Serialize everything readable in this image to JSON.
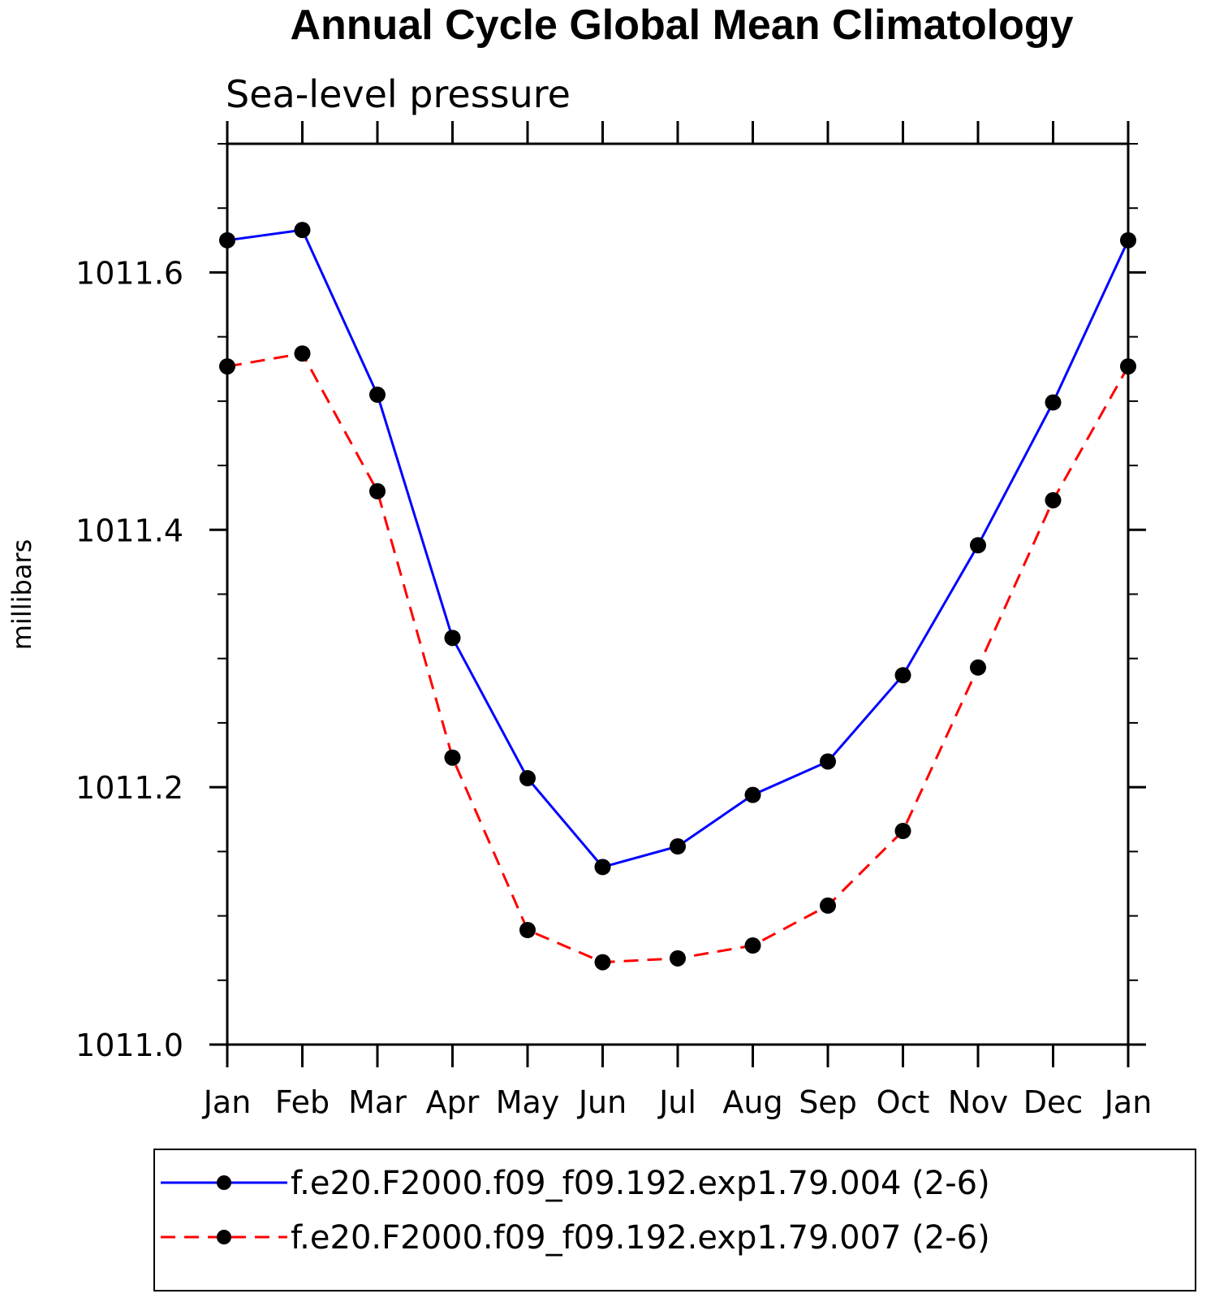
{
  "chart_data": {
    "type": "line",
    "title": "Annual Cycle Global Mean Climatology",
    "subtitle": "Sea-level pressure",
    "ylabel": "millibars",
    "xlabel": "",
    "categories": [
      "Jan",
      "Feb",
      "Mar",
      "Apr",
      "May",
      "Jun",
      "Jul",
      "Aug",
      "Sep",
      "Oct",
      "Nov",
      "Dec",
      "Jan"
    ],
    "ylim": [
      1011.0,
      1011.7
    ],
    "yticks": [
      1011.0,
      1011.2,
      1011.4,
      1011.6
    ],
    "ytick_labels": [
      "1011.0",
      "1011.2",
      "1011.4",
      "1011.6"
    ],
    "y_minor_step": 0.05,
    "grid": false,
    "legend_position": "bottom",
    "series": [
      {
        "name": "f.e20.F2000.f09_f09.192.exp1.79.004 (2-6)",
        "color": "#0000ff",
        "dash": "solid",
        "marker": "filled-circle",
        "values": [
          1011.625,
          1011.633,
          1011.505,
          1011.316,
          1011.207,
          1011.138,
          1011.154,
          1011.194,
          1011.22,
          1011.287,
          1011.388,
          1011.499,
          1011.625
        ]
      },
      {
        "name": "f.e20.F2000.f09_f09.192.exp1.79.007 (2-6)",
        "color": "#ff0000",
        "dash": "dashed",
        "marker": "filled-circle",
        "values": [
          1011.527,
          1011.537,
          1011.43,
          1011.223,
          1011.089,
          1011.064,
          1011.067,
          1011.077,
          1011.108,
          1011.166,
          1011.293,
          1011.423,
          1011.527
        ]
      }
    ]
  }
}
